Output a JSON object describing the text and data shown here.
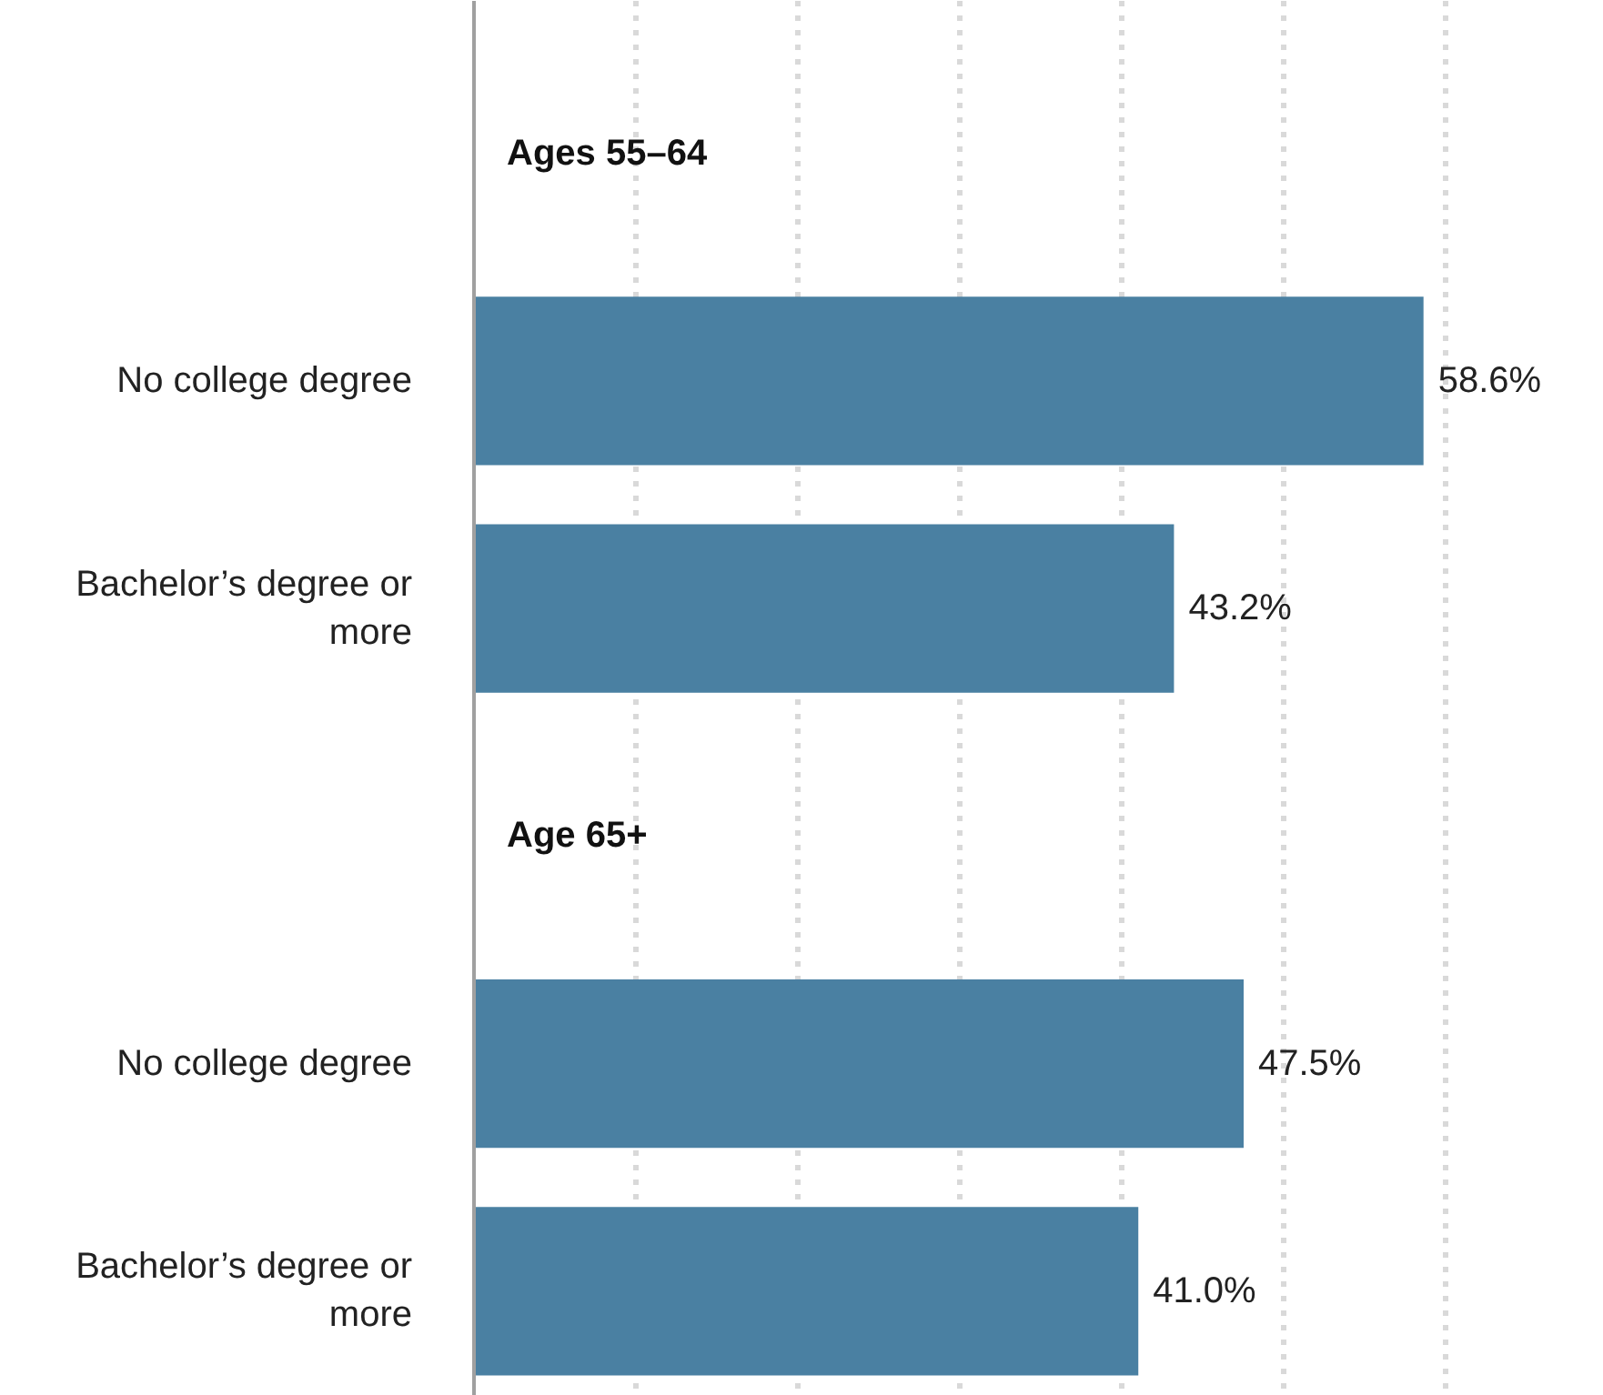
{
  "chart_data": {
    "type": "bar",
    "orientation": "horizontal",
    "categories": [
      null,
      "No college degree",
      "Bachelor’s degree or more",
      null,
      "No college degree",
      "Bachelor’s degree or more"
    ],
    "values": [
      null,
      58.6,
      43.2,
      null,
      47.5,
      41.0
    ],
    "color": "#4a80a2",
    "annotations": [
      "Ages 55–64",
      "Age 65+"
    ],
    "grid": "x",
    "tick_labels": false,
    "value_labels": [
      null,
      "58.6%",
      "43.2%",
      null,
      "47.5%",
      "41.0%"
    ]
  }
}
